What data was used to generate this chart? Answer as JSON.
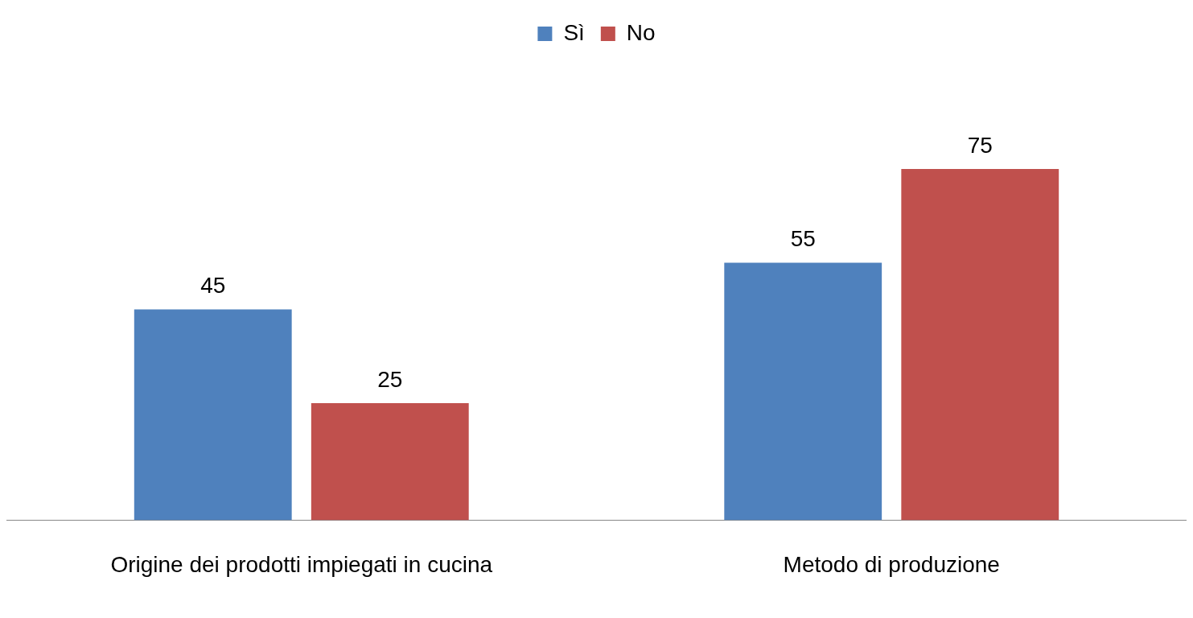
{
  "chart_data": {
    "type": "bar",
    "categories": [
      "Origine dei prodotti impiegati in cucina",
      "Metodo di produzione"
    ],
    "series": [
      {
        "name": "Sì",
        "color": "#4f81bd",
        "values": [
          45,
          55
        ]
      },
      {
        "name": "No",
        "color": "#c0504d",
        "values": [
          25,
          75
        ]
      }
    ],
    "data_labels": true,
    "legend": "top",
    "grid": false
  }
}
